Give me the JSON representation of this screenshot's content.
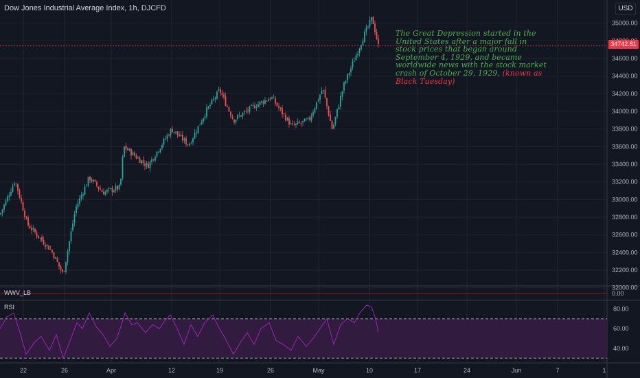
{
  "header": {
    "title": "Dow Jones Industrial Average Index, 1h, DJCFD",
    "currency": "USD"
  },
  "annotation": {
    "main": "The Great Depression started in the United States after a major fall in stock prices that began around September 4, 1929, and became worldwide news with the stock market crash of October 29, 1929,",
    "highlight": "(known as Black Tuesday)"
  },
  "indicators": {
    "wwv": "WWV_LB",
    "rsi": "RSI",
    "wwv_value": "0.00"
  },
  "colors": {
    "up": "#26a69a",
    "down": "#ef5350",
    "rsi": "#9c27b0",
    "rsi_band": "#311b3e",
    "annotation": "#4caf50",
    "price_line": "#f23645"
  },
  "chart_data": {
    "type": "candlestick",
    "title": "Dow Jones Industrial Average Index, 1h, DJCFD",
    "x_ticks": [
      "22",
      "26",
      "Apr",
      "12",
      "19",
      "26",
      "May",
      "10",
      "17",
      "24",
      "Jun",
      "7",
      "1"
    ],
    "y_ticks": [
      32000,
      32200,
      32400,
      32600,
      32800,
      33000,
      33200,
      33400,
      33600,
      33800,
      34000,
      34200,
      34400,
      34600,
      34800,
      35000
    ],
    "ylim": [
      31850,
      35200
    ],
    "last_price": "34742.81",
    "key_closes": [
      [
        0,
        32830
      ],
      [
        22,
        33220
      ],
      [
        40,
        32720
      ],
      [
        75,
        32420
      ],
      [
        92,
        32150
      ],
      [
        110,
        32900
      ],
      [
        130,
        33250
      ],
      [
        150,
        33080
      ],
      [
        175,
        33140
      ],
      [
        180,
        33600
      ],
      [
        215,
        33380
      ],
      [
        250,
        33800
      ],
      [
        275,
        33620
      ],
      [
        300,
        34000
      ],
      [
        320,
        34240
      ],
      [
        340,
        33900
      ],
      [
        370,
        34060
      ],
      [
        395,
        34160
      ],
      [
        425,
        33830
      ],
      [
        450,
        33900
      ],
      [
        470,
        34260
      ],
      [
        484,
        33790
      ],
      [
        500,
        34280
      ],
      [
        530,
        34860
      ],
      [
        542,
        35060
      ],
      [
        551,
        34742
      ]
    ],
    "rsi": {
      "y_ticks": [
        40,
        60,
        80
      ],
      "ylim": [
        28,
        86
      ],
      "band": [
        30,
        70
      ],
      "points": [
        [
          0,
          60
        ],
        [
          10,
          72
        ],
        [
          20,
          76
        ],
        [
          30,
          54
        ],
        [
          38,
          34
        ],
        [
          50,
          46
        ],
        [
          60,
          52
        ],
        [
          72,
          38
        ],
        [
          82,
          54
        ],
        [
          92,
          30
        ],
        [
          100,
          44
        ],
        [
          112,
          66
        ],
        [
          120,
          60
        ],
        [
          130,
          76
        ],
        [
          140,
          62
        ],
        [
          150,
          54
        ],
        [
          160,
          42
        ],
        [
          170,
          50
        ],
        [
          176,
          62
        ],
        [
          182,
          76
        ],
        [
          192,
          64
        ],
        [
          200,
          66
        ],
        [
          212,
          56
        ],
        [
          222,
          64
        ],
        [
          232,
          60
        ],
        [
          240,
          68
        ],
        [
          248,
          74
        ],
        [
          258,
          60
        ],
        [
          268,
          44
        ],
        [
          278,
          64
        ],
        [
          288,
          52
        ],
        [
          298,
          66
        ],
        [
          310,
          74
        ],
        [
          318,
          62
        ],
        [
          328,
          50
        ],
        [
          340,
          34
        ],
        [
          350,
          46
        ],
        [
          360,
          56
        ],
        [
          370,
          44
        ],
        [
          380,
          60
        ],
        [
          392,
          66
        ],
        [
          402,
          48
        ],
        [
          412,
          44
        ],
        [
          424,
          38
        ],
        [
          434,
          52
        ],
        [
          446,
          42
        ],
        [
          456,
          50
        ],
        [
          466,
          60
        ],
        [
          476,
          70
        ],
        [
          486,
          44
        ],
        [
          496,
          64
        ],
        [
          506,
          70
        ],
        [
          516,
          66
        ],
        [
          524,
          76
        ],
        [
          534,
          84
        ],
        [
          541,
          82
        ],
        [
          547,
          70
        ],
        [
          551,
          56
        ]
      ]
    }
  }
}
